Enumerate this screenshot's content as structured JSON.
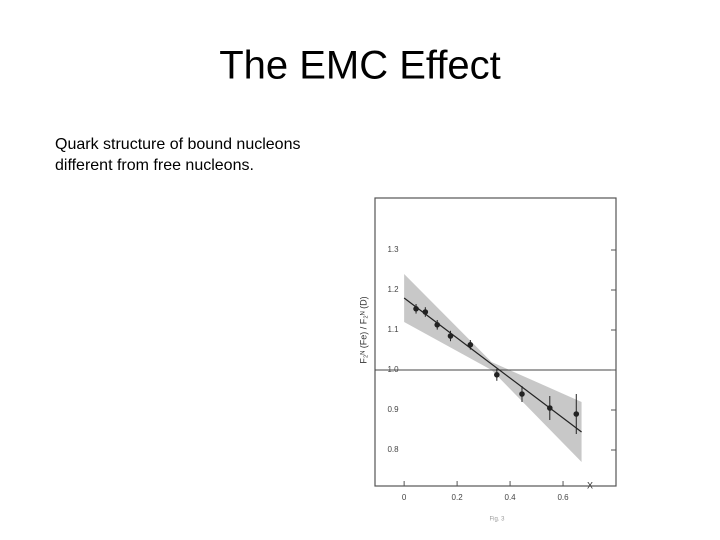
{
  "slide": {
    "title": "The EMC Effect",
    "body": [
      "Quark structure of bound nucleons",
      "different from free nucleons."
    ]
  },
  "chart_data": {
    "type": "scatter",
    "x_label": "X",
    "y_label": "F₂ᴺ (Fe) / F₂ᴺ (D)",
    "caption": "Fig. 3",
    "x": [
      0.045,
      0.08,
      0.125,
      0.175,
      0.25,
      0.35,
      0.445,
      0.55,
      0.65
    ],
    "values": [
      1.153,
      1.145,
      1.113,
      1.085,
      1.063,
      0.988,
      0.94,
      0.905,
      0.89
    ],
    "errors": [
      0.012,
      0.012,
      0.012,
      0.013,
      0.012,
      0.015,
      0.02,
      0.03,
      0.05
    ],
    "fit": {
      "x": [
        0,
        0.67
      ],
      "y": [
        1.18,
        0.845
      ]
    },
    "band": {
      "x": [
        0,
        0.33,
        0.67
      ],
      "upper": [
        1.24,
        1.02,
        0.92
      ],
      "lower": [
        1.12,
        1.0,
        0.77
      ]
    },
    "reference_line": 1,
    "color": "#222222",
    "band_color": "#c8c8c8",
    "xlim": [
      -0.11,
      0.8
    ],
    "ylim": [
      0.71,
      1.43
    ],
    "xticks": [
      0,
      0.2,
      0.4,
      0.6
    ],
    "yticks": [
      0.8,
      0.9,
      {
        "value": 1,
        "label": "1.0"
      },
      1.1,
      1.2,
      1.3
    ]
  }
}
